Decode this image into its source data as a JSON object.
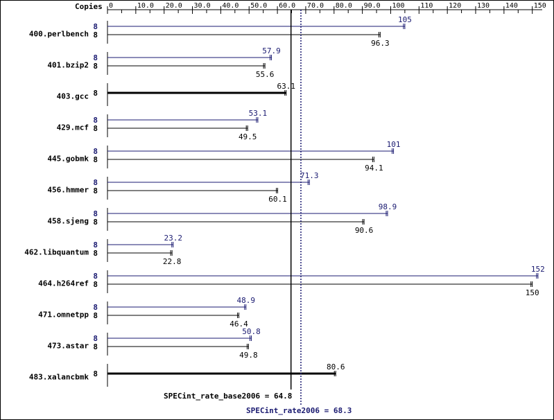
{
  "chart_data": {
    "type": "bar",
    "orientation": "horizontal",
    "copies_header": "Copies",
    "x_ticks": [
      "0",
      "10.0",
      "20.0",
      "30.0",
      "40.0",
      "50.0",
      "60.0",
      "70.0",
      "80.0",
      "90.0",
      "100",
      "110",
      "120",
      "130",
      "140",
      "150"
    ],
    "x_tick_values": [
      0,
      10,
      20,
      30,
      40,
      50,
      60,
      70,
      80,
      90,
      100,
      110,
      120,
      130,
      140,
      150
    ],
    "xlim": [
      0,
      153.5
    ],
    "colors": {
      "peak": "#191970",
      "base": "#000000"
    },
    "benchmarks": [
      {
        "name": "400.perlbench",
        "peak_copies": "8",
        "peak": 105,
        "peak_label": "105",
        "base_copies": "8",
        "base": 96.3,
        "base_label": "96.3"
      },
      {
        "name": "401.bzip2",
        "peak_copies": "8",
        "peak": 57.9,
        "peak_label": "57.9",
        "base_copies": "8",
        "base": 55.6,
        "base_label": "55.6"
      },
      {
        "name": "403.gcc",
        "base_copies": "8",
        "base": 63.1,
        "base_label": "63.1"
      },
      {
        "name": "429.mcf",
        "peak_copies": "8",
        "peak": 53.1,
        "peak_label": "53.1",
        "base_copies": "8",
        "base": 49.5,
        "base_label": "49.5"
      },
      {
        "name": "445.gobmk",
        "peak_copies": "8",
        "peak": 101,
        "peak_label": "101",
        "base_copies": "8",
        "base": 94.1,
        "base_label": "94.1"
      },
      {
        "name": "456.hmmer",
        "peak_copies": "8",
        "peak": 71.3,
        "peak_label": "71.3",
        "base_copies": "8",
        "base": 60.1,
        "base_label": "60.1"
      },
      {
        "name": "458.sjeng",
        "peak_copies": "8",
        "peak": 98.9,
        "peak_label": "98.9",
        "base_copies": "8",
        "base": 90.6,
        "base_label": "90.6"
      },
      {
        "name": "462.libquantum",
        "peak_copies": "8",
        "peak": 23.2,
        "peak_label": "23.2",
        "base_copies": "8",
        "base": 22.8,
        "base_label": "22.8"
      },
      {
        "name": "464.h264ref",
        "peak_copies": "8",
        "peak": 152,
        "peak_label": "152",
        "base_copies": "8",
        "base": 150,
        "base_label": "150"
      },
      {
        "name": "471.omnetpp",
        "peak_copies": "8",
        "peak": 48.9,
        "peak_label": "48.9",
        "base_copies": "8",
        "base": 46.4,
        "base_label": "46.4"
      },
      {
        "name": "473.astar",
        "peak_copies": "8",
        "peak": 50.8,
        "peak_label": "50.8",
        "base_copies": "8",
        "base": 49.8,
        "base_label": "49.8"
      },
      {
        "name": "483.xalancbmk",
        "base_copies": "8",
        "base": 80.6,
        "base_label": "80.6"
      }
    ],
    "summary": {
      "base_text": "SPECint_rate_base2006 = 64.8",
      "base_value": 64.8,
      "peak_text": "SPECint_rate2006 = 68.3",
      "peak_value": 68.3
    }
  }
}
